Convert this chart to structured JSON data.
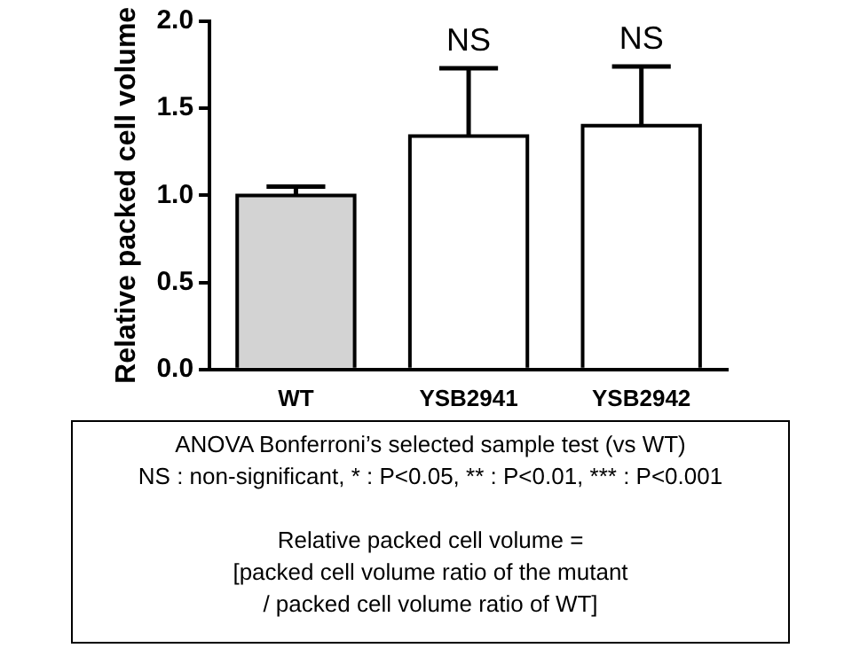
{
  "chart_data": {
    "type": "bar",
    "ylabel": "Relative packed cell volume",
    "categories": [
      "WT",
      "YSB2941",
      "YSB2942"
    ],
    "values": [
      1.0,
      1.34,
      1.4
    ],
    "colors": [
      "#d3d3d3",
      "#ffffff",
      "#ffffff"
    ],
    "errors": [
      [
        1.0,
        1.05
      ],
      [
        1.34,
        1.73
      ],
      [
        1.4,
        1.74
      ]
    ],
    "ylim": [
      0,
      2
    ],
    "yticks": [
      {
        "value": 0,
        "label": "0.0"
      },
      {
        "value": 0.5,
        "label": "0.5"
      },
      {
        "value": 1,
        "label": "1.0"
      },
      {
        "value": 1.5,
        "label": "1.5"
      },
      {
        "value": 2,
        "label": "2.0"
      }
    ],
    "grid": false,
    "legend": false,
    "annotations": [
      {
        "text": "NS",
        "x": "YSB2941",
        "y": 1.73
      },
      {
        "text": "NS",
        "x": "YSB2942",
        "y": 1.74
      },
      "ANOVA Bonferroni’s selected sample test (vs WT)",
      "NS : non-significant, * : P<0.05, ** : P<0.01, *** : P<0.001",
      "Relative packed cell volume =",
      "[packed cell volume ratio of the mutant",
      "/ packed cell volume ratio of WT]"
    ]
  }
}
